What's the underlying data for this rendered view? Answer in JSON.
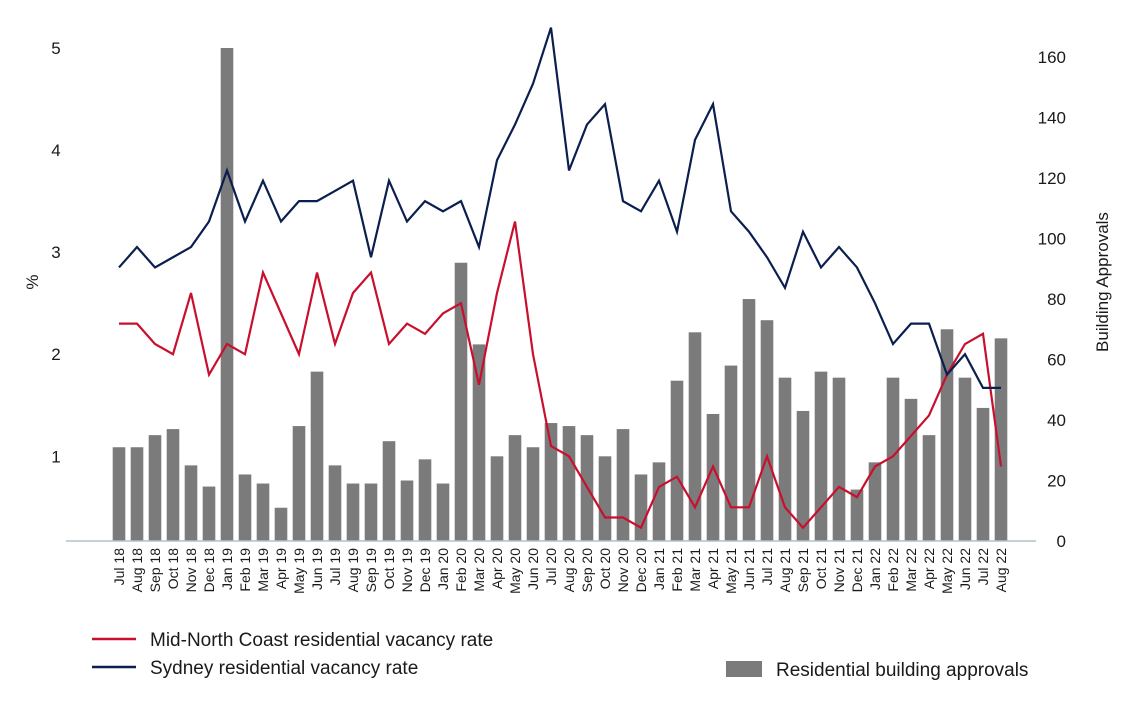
{
  "chart_data": {
    "type": "bar",
    "title": "",
    "categories": [
      "Jul 18",
      "Aug 18",
      "Sep 18",
      "Oct 18",
      "Nov 18",
      "Dec 18",
      "Jan 19",
      "Feb 19",
      "Mar 19",
      "Apr 19",
      "May 19",
      "Jun 19",
      "Jul 19",
      "Aug 19",
      "Sep 19",
      "Oct 19",
      "Nov 19",
      "Dec 19",
      "Jan 20",
      "Feb 20",
      "Mar 20",
      "Apr 20",
      "May 20",
      "Jun 20",
      "Jul 20",
      "Aug 20",
      "Sep 20",
      "Oct 20",
      "Nov 20",
      "Dec 20",
      "Jan 21",
      "Feb 21",
      "Mar 21",
      "Apr 21",
      "May 21",
      "Jun 21",
      "Jul 21",
      "Aug 21",
      "Sep 21",
      "Oct 21",
      "Nov 21",
      "Dec 21",
      "Jan 22",
      "Feb 22",
      "Mar 22",
      "Apr 22",
      "May 22",
      "Jun 22",
      "Jul 22",
      "Aug 22"
    ],
    "ylabel_left": "%",
    "ylabel_right": "Building Approvals",
    "yticks_left": [
      1,
      2,
      3,
      4,
      5
    ],
    "ylim_left": [
      0.17,
      5.0
    ],
    "yticks_right": [
      0,
      20,
      40,
      60,
      80,
      100,
      120,
      140,
      160
    ],
    "ylim_right": [
      0,
      163
    ],
    "series": [
      {
        "name": "Residential building approvals",
        "kind": "bar",
        "axis": "right",
        "color": "#7b7b7b",
        "values": [
          31,
          31,
          35,
          37,
          25,
          18,
          163,
          22,
          19,
          11,
          38,
          56,
          25,
          19,
          19,
          33,
          20,
          27,
          19,
          92,
          65,
          28,
          35,
          31,
          39,
          38,
          35,
          28,
          37,
          22,
          26,
          53,
          69,
          42,
          58,
          80,
          73,
          54,
          43,
          56,
          54,
          17,
          26,
          54,
          47,
          35,
          70,
          54,
          44,
          67
        ]
      },
      {
        "name": "Mid-North Coast residential vacancy rate",
        "kind": "line",
        "axis": "left",
        "color": "#c8102e",
        "values": [
          2.3,
          2.3,
          2.1,
          2.0,
          2.6,
          1.8,
          2.1,
          2.0,
          2.8,
          2.4,
          2.0,
          2.8,
          2.1,
          2.6,
          2.8,
          2.1,
          2.3,
          2.2,
          2.4,
          2.5,
          1.7,
          2.6,
          3.3,
          2.0,
          1.1,
          1.0,
          0.7,
          0.4,
          0.4,
          0.3,
          0.7,
          0.8,
          0.5,
          0.9,
          0.5,
          0.5,
          1.0,
          0.5,
          0.3,
          0.5,
          0.7,
          0.6,
          0.9,
          1.0,
          1.2,
          1.4,
          1.8,
          2.1,
          2.2,
          0.9
        ]
      },
      {
        "name": "Sydney residential vacancy rate",
        "kind": "line",
        "axis": "left",
        "color": "#0b1f4f",
        "values": [
          2.85,
          3.05,
          2.85,
          2.95,
          3.05,
          3.3,
          3.8,
          3.3,
          3.7,
          3.3,
          3.5,
          3.5,
          3.6,
          3.7,
          2.95,
          3.7,
          3.3,
          3.5,
          3.4,
          3.5,
          3.05,
          3.9,
          4.25,
          4.65,
          5.2,
          3.8,
          4.25,
          4.45,
          3.5,
          3.4,
          3.7,
          3.2,
          4.1,
          4.45,
          3.4,
          3.2,
          2.95,
          2.65,
          3.2,
          2.85,
          3.05,
          2.85,
          2.5,
          2.1,
          2.3,
          2.3,
          1.8,
          2.0,
          1.67,
          1.67
        ]
      }
    ],
    "legend": {
      "position": "bottom",
      "items": [
        "Mid-North Coast residential vacancy rate",
        "Sydney residential vacancy rate",
        "Residential building approvals"
      ]
    }
  }
}
